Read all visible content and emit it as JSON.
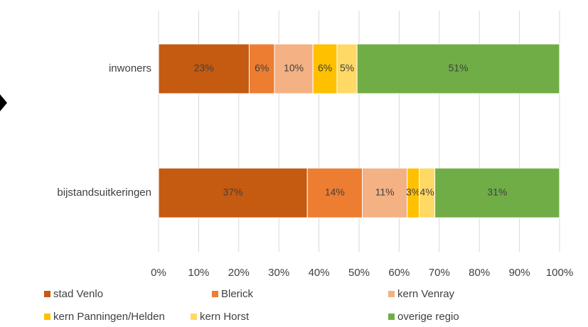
{
  "chart_data": {
    "type": "bar_stacked_horizontal",
    "categories": [
      "inwoners",
      "bijstandsuitkeringen"
    ],
    "series": [
      {
        "name": "stad Venlo",
        "color": "#c55a11",
        "values": [
          22.6,
          37.1
        ],
        "value_labels": [
          "23%",
          "37%"
        ]
      },
      {
        "name": "Blerick",
        "color": "#ed7d31",
        "values": [
          6.3,
          13.7
        ],
        "value_labels": [
          "6%",
          "14%"
        ]
      },
      {
        "name": "kern Venray",
        "color": "#f4b183",
        "values": [
          9.6,
          11.2
        ],
        "value_labels": [
          "10%",
          "11%"
        ]
      },
      {
        "name": "kern Panningen/Helden",
        "color": "#ffc000",
        "values": [
          6.0,
          3.0
        ],
        "value_labels": [
          "6%",
          "3%"
        ]
      },
      {
        "name": "kern Horst",
        "color": "#ffd966",
        "values": [
          5.0,
          3.9
        ],
        "value_labels": [
          "5%",
          "4%"
        ]
      },
      {
        "name": "overige regio",
        "color": "#70ad47",
        "values": [
          50.5,
          31.1
        ],
        "value_labels": [
          "51%",
          "31%"
        ]
      }
    ],
    "xlim": [
      0,
      100
    ],
    "xticks": [
      {
        "value": 0,
        "label": "0%"
      },
      {
        "value": 10,
        "label": "10%"
      },
      {
        "value": 20,
        "label": "20%"
      },
      {
        "value": 30,
        "label": "30%"
      },
      {
        "value": 40,
        "label": "40%"
      },
      {
        "value": 50,
        "label": "50%"
      },
      {
        "value": 60,
        "label": "60%"
      },
      {
        "value": 70,
        "label": "70%"
      },
      {
        "value": 80,
        "label": "80%"
      },
      {
        "value": 90,
        "label": "90%"
      },
      {
        "value": 100,
        "label": "100%"
      }
    ],
    "grid": true,
    "legend": "bottom"
  }
}
